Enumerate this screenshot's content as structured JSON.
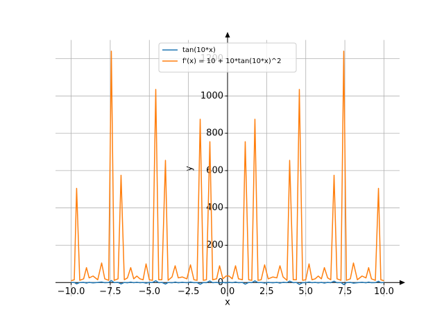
{
  "chart_data": {
    "type": "line",
    "xlabel": "x",
    "ylabel": "y",
    "x": [
      -10,
      -9.8,
      -9.65,
      -9.45,
      -9.2,
      -9.02,
      -8.85,
      -8.6,
      -8.3,
      -8.05,
      -7.85,
      -7.6,
      -7.43,
      -7.25,
      -7.0,
      -6.81,
      -6.6,
      -6.4,
      -6.19,
      -6.0,
      -5.8,
      -5.6,
      -5.4,
      -5.21,
      -5.0,
      -4.8,
      -4.59,
      -4.4,
      -4.2,
      -3.97,
      -3.8,
      -3.55,
      -3.35,
      -3.15,
      -2.9,
      -2.6,
      -2.37,
      -2.15,
      -1.95,
      -1.75,
      -1.55,
      -1.35,
      -1.13,
      -0.95,
      -0.7,
      -0.51,
      -0.3,
      -0.1,
      0.1,
      0.3,
      0.51,
      0.7,
      0.95,
      1.13,
      1.35,
      1.55,
      1.75,
      1.95,
      2.15,
      2.37,
      2.6,
      2.9,
      3.15,
      3.35,
      3.55,
      3.8,
      3.97,
      4.2,
      4.4,
      4.59,
      4.8,
      5.0,
      5.21,
      5.4,
      5.6,
      5.8,
      6.0,
      6.19,
      6.4,
      6.6,
      6.81,
      7.0,
      7.25,
      7.43,
      7.6,
      7.85,
      8.05,
      8.3,
      8.6,
      8.85,
      9.02,
      9.2,
      9.45,
      9.65,
      9.8,
      10
    ],
    "series": [
      {
        "name": "tan(10*x)",
        "color": "#1f77b4",
        "values": [
          0,
          0.7,
          -7,
          0.4,
          1,
          -2.6,
          1.2,
          -1.6,
          0.7,
          3,
          -1,
          0.4,
          11,
          -0.4,
          1,
          -7.5,
          0.7,
          -1.2,
          2.6,
          -1,
          1.6,
          -1,
          0.7,
          -3,
          0.7,
          0.4,
          10,
          -0.7,
          0.7,
          -8,
          0.4,
          -1.4,
          2.8,
          -1.2,
          1.4,
          -1,
          2.9,
          -0.7,
          0.4,
          -9.3,
          0.4,
          -0.7,
          8.6,
          -0.7,
          1,
          -2.8,
          1,
          -1.6,
          1.6,
          -1,
          2.8,
          -1,
          0.7,
          -8.6,
          0.7,
          -0.4,
          9.3,
          -0.4,
          0.7,
          -2.9,
          1,
          -1.4,
          1.2,
          -2.8,
          1.4,
          -0.4,
          8,
          -0.7,
          0.7,
          -10,
          -0.4,
          -0.7,
          3,
          -0.7,
          1,
          -1.6,
          1,
          -2.6,
          1.2,
          -0.7,
          7.5,
          -1,
          0.4,
          -11,
          -0.4,
          1,
          -3,
          -0.7,
          1.6,
          -1.2,
          2.6,
          -1,
          -0.4,
          7,
          -0.7,
          0
        ]
      },
      {
        "name": "f'(x) = 10 + 10*tan(10*x)^2",
        "color": "#ff7f0e",
        "values": [
          10,
          15,
          505,
          12,
          20,
          80,
          25,
          35,
          15,
          105,
          20,
          12,
          1240,
          12,
          20,
          575,
          15,
          25,
          80,
          20,
          35,
          20,
          15,
          100,
          15,
          12,
          1035,
          15,
          15,
          655,
          12,
          30,
          90,
          25,
          30,
          20,
          95,
          15,
          12,
          875,
          12,
          15,
          755,
          15,
          20,
          90,
          20,
          35,
          35,
          20,
          90,
          20,
          15,
          755,
          15,
          12,
          875,
          12,
          15,
          95,
          20,
          30,
          25,
          90,
          30,
          12,
          655,
          15,
          15,
          1035,
          12,
          15,
          100,
          15,
          20,
          35,
          20,
          80,
          25,
          15,
          575,
          20,
          12,
          1240,
          12,
          20,
          105,
          15,
          35,
          25,
          80,
          20,
          12,
          505,
          15,
          10
        ]
      }
    ],
    "xlim": [
      -11,
      11
    ],
    "ylim": [
      -74,
      1300
    ],
    "xticks": [
      {
        "value": -10,
        "label": "−10.0"
      },
      {
        "value": -7.5,
        "label": "−7.5"
      },
      {
        "value": -5,
        "label": "−5.0"
      },
      {
        "value": -2.5,
        "label": "−2.5"
      },
      {
        "value": 0,
        "label": "0.0"
      },
      {
        "value": 2.5,
        "label": "2.5"
      },
      {
        "value": 5,
        "label": "5.0"
      },
      {
        "value": 7.5,
        "label": "7.5"
      },
      {
        "value": 10,
        "label": "10.0"
      }
    ],
    "yticks": [
      0,
      200,
      400,
      600,
      800,
      1000,
      1200
    ],
    "grid": true,
    "legend": "upper center"
  }
}
